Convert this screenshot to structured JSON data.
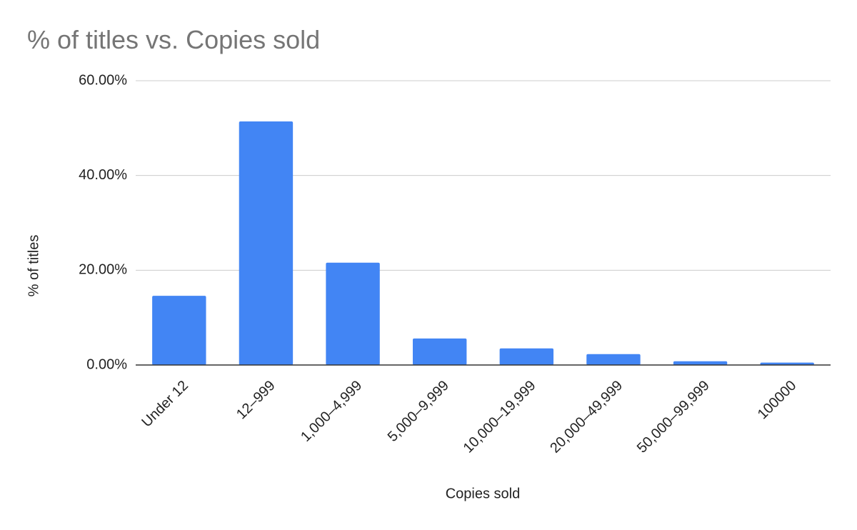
{
  "chart_data": {
    "type": "bar",
    "title": "% of titles vs. Copies sold",
    "x_label": "Copies sold",
    "y_label": "% of titles",
    "categories": [
      "Under 12",
      "12–999",
      "1,000–4,999",
      "5,000–9,999",
      "10,000–19,999",
      "20,000–49,999",
      "50,000–99,999",
      "100000"
    ],
    "values": [
      14.6,
      51.4,
      21.6,
      5.6,
      3.5,
      2.3,
      0.8,
      0.5
    ],
    "color": "#4285f4",
    "ylim": [
      0,
      60
    ],
    "yticks": [
      {
        "value": 0,
        "label": "0.00%"
      },
      {
        "value": 20,
        "label": "20.00%"
      },
      {
        "value": 40,
        "label": "40.00%"
      },
      {
        "value": 60,
        "label": "60.00%"
      }
    ],
    "grid": true
  }
}
